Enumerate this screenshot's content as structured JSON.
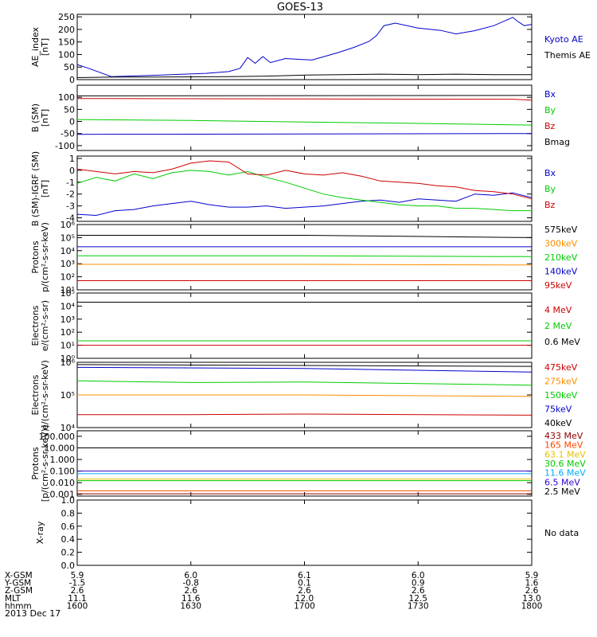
{
  "title": "GOES-13",
  "date_label": "2013 Dec 17",
  "chart_data": [
    {
      "type": "line",
      "ylabel_lines": [
        "AE_index",
        "[nT]"
      ],
      "ylim": [
        0,
        260
      ],
      "yticks": [
        0,
        50,
        100,
        150,
        200,
        250
      ],
      "yticklabels": [
        "0",
        "50",
        "100",
        "150",
        "200",
        "250"
      ],
      "series": [
        {
          "name": "Kyoto AE",
          "color": "#0000cc",
          "x": [
            1600,
            1603,
            1609,
            1620,
            1634,
            1640,
            1643,
            1645,
            1647,
            1649,
            1651,
            1655,
            1702,
            1709,
            1713,
            1717,
            1719,
            1721,
            1724,
            1730,
            1736,
            1740,
            1745,
            1750,
            1755,
            1756,
            1758,
            1800
          ],
          "y": [
            60,
            45,
            12,
            17,
            25,
            32,
            45,
            88,
            65,
            92,
            68,
            84,
            78,
            108,
            128,
            152,
            175,
            215,
            225,
            205,
            196,
            182,
            195,
            215,
            248,
            235,
            215,
            220
          ]
        },
        {
          "name": "Themis AE",
          "color": "#000000",
          "x": [
            1600,
            1610,
            1620,
            1630,
            1640,
            1650,
            1700,
            1710,
            1720,
            1730,
            1740,
            1750,
            1800
          ],
          "y": [
            8,
            10,
            10,
            11,
            12,
            14,
            18,
            20,
            22,
            20,
            22,
            20,
            20
          ]
        }
      ]
    },
    {
      "type": "line",
      "ylabel_lines": [
        "B (SM)",
        "[nT]"
      ],
      "ylim": [
        -120,
        150
      ],
      "yticks": [
        -100,
        -50,
        0,
        50,
        100
      ],
      "yticklabels": [
        "-100",
        "-50",
        "0",
        "50",
        "100"
      ],
      "series": [
        {
          "name": "Bx",
          "color": "#0000cc",
          "x": [
            1600,
            1700,
            1800
          ],
          "y": [
            -53,
            -52,
            -50
          ]
        },
        {
          "name": "By",
          "color": "#00cc00",
          "x": [
            1600,
            1630,
            1700,
            1730,
            1800
          ],
          "y": [
            8,
            4,
            -2,
            -8,
            -15
          ]
        },
        {
          "name": "Bz",
          "color": "#cc0000",
          "x": [
            1600,
            1700,
            1755,
            1800
          ],
          "y": [
            95,
            93,
            92,
            88
          ]
        },
        {
          "name": "Bmag",
          "color": "#000000",
          "x": [
            1600,
            1800
          ],
          "y": [
            106,
            108
          ]
        }
      ]
    },
    {
      "type": "line",
      "ylabel_lines": [
        "B (SM)-IGRF (SM)",
        "[nT]"
      ],
      "ylim": [
        -4.3,
        1.2
      ],
      "yticks": [
        -4,
        -3,
        -2,
        -1,
        0,
        1
      ],
      "yticklabels": [
        "-4",
        "-3",
        "-2",
        "-1",
        "0",
        "1"
      ],
      "series": [
        {
          "name": "Bx",
          "color": "#0000cc",
          "x": [
            1600,
            1605,
            1610,
            1615,
            1620,
            1625,
            1630,
            1635,
            1640,
            1645,
            1650,
            1655,
            1700,
            1705,
            1710,
            1715,
            1720,
            1725,
            1730,
            1735,
            1740,
            1745,
            1750,
            1755,
            1800
          ],
          "y": [
            -3.7,
            -3.8,
            -3.4,
            -3.3,
            -3.0,
            -2.8,
            -2.6,
            -2.9,
            -3.1,
            -3.1,
            -3.0,
            -3.2,
            -3.1,
            -3.0,
            -2.8,
            -2.6,
            -2.5,
            -2.7,
            -2.4,
            -2.5,
            -2.6,
            -2.0,
            -2.1,
            -1.9,
            -2.3
          ]
        },
        {
          "name": "By",
          "color": "#00cc00",
          "x": [
            1600,
            1605,
            1610,
            1615,
            1620,
            1625,
            1630,
            1635,
            1640,
            1645,
            1650,
            1655,
            1700,
            1705,
            1710,
            1715,
            1720,
            1725,
            1730,
            1735,
            1740,
            1745,
            1750,
            1755,
            1800
          ],
          "y": [
            -1.1,
            -0.6,
            -0.9,
            -0.3,
            -0.7,
            -0.2,
            0.0,
            -0.1,
            -0.4,
            -0.1,
            -0.6,
            -1.0,
            -1.5,
            -2.0,
            -2.3,
            -2.5,
            -2.7,
            -2.9,
            -3.0,
            -3.0,
            -3.2,
            -3.2,
            -3.3,
            -3.4,
            -3.4
          ]
        },
        {
          "name": "Bz",
          "color": "#cc0000",
          "x": [
            1600,
            1605,
            1610,
            1615,
            1620,
            1625,
            1630,
            1635,
            1640,
            1645,
            1650,
            1655,
            1700,
            1705,
            1710,
            1715,
            1720,
            1725,
            1730,
            1735,
            1740,
            1745,
            1750,
            1755,
            1800
          ],
          "y": [
            0.1,
            -0.1,
            -0.3,
            -0.1,
            -0.2,
            0.1,
            0.6,
            0.8,
            0.7,
            -0.3,
            -0.4,
            0.0,
            -0.3,
            -0.4,
            -0.2,
            -0.5,
            -0.9,
            -1.0,
            -1.1,
            -1.3,
            -1.4,
            -1.7,
            -1.8,
            -2.0,
            -2.4
          ]
        }
      ]
    },
    {
      "type": "line",
      "ylabel_lines": [
        "Protons",
        "p/(cm²-s-sr-keV)"
      ],
      "yscale": "log",
      "ylim": [
        10,
        1000000
      ],
      "yticks": [
        10,
        100,
        1000,
        10000,
        100000,
        1000000
      ],
      "yticklabels": [
        "10¹",
        "10²",
        "10³",
        "10⁴",
        "10⁵",
        "10⁶"
      ],
      "series": [
        {
          "name": "575keV",
          "color": "#000000",
          "x": [
            1600,
            1700,
            1800
          ],
          "y": [
            150000,
            150000,
            100000
          ]
        },
        {
          "name": "300keV",
          "color": "#ff8c00",
          "x": [
            1600,
            1700,
            1800
          ],
          "y": [
            900,
            900,
            800
          ]
        },
        {
          "name": "210keV",
          "color": "#00cc00",
          "x": [
            1600,
            1700,
            1800
          ],
          "y": [
            4000,
            4000,
            3500
          ]
        },
        {
          "name": "140keV",
          "color": "#0000cc",
          "x": [
            1600,
            1700,
            1800
          ],
          "y": [
            20000,
            20000,
            20000
          ]
        },
        {
          "name": "95keV",
          "color": "#cc0000",
          "x": [
            1600,
            1700,
            1800
          ],
          "y": [
            50,
            50,
            50
          ]
        }
      ]
    },
    {
      "type": "line",
      "ylabel_lines": [
        "Electrons",
        "e/(cm²-s-sr)"
      ],
      "yscale": "log",
      "ylim": [
        1,
        100000
      ],
      "yticks": [
        1,
        10,
        100,
        1000,
        10000,
        100000
      ],
      "yticklabels": [
        "10⁰",
        "10¹",
        "10²",
        "10³",
        "10⁴",
        "10⁵"
      ],
      "series": [
        {
          "name": "4 MeV",
          "color": "#cc0000",
          "x": [
            1600,
            1700,
            1800
          ],
          "y": [
            10,
            10,
            10
          ]
        },
        {
          "name": "2 MeV",
          "color": "#00cc00",
          "x": [
            1600,
            1700,
            1800
          ],
          "y": [
            22,
            22,
            22
          ]
        },
        {
          "name": "0.6 MeV",
          "color": "#000000",
          "x": [
            1600,
            1700,
            1800
          ],
          "y": [
            20000,
            20000,
            20000
          ]
        }
      ]
    },
    {
      "type": "line",
      "ylabel_lines": [
        "Electrons",
        "e/(cm²-s-sr-keV)"
      ],
      "yscale": "log",
      "ylim": [
        10000,
        1000000
      ],
      "yticks": [
        10000,
        100000,
        1000000
      ],
      "yticklabels": [
        "10⁴",
        "10⁵",
        "10⁶"
      ],
      "series": [
        {
          "name": "475keV",
          "color": "#cc0000",
          "x": [
            1600,
            1630,
            1700,
            1800
          ],
          "y": [
            25000,
            25000,
            26000,
            24000
          ]
        },
        {
          "name": "275keV",
          "color": "#ff8c00",
          "x": [
            1600,
            1700,
            1800
          ],
          "y": [
            100000,
            100000,
            90000
          ]
        },
        {
          "name": "150keV",
          "color": "#00cc00",
          "x": [
            1600,
            1630,
            1700,
            1800
          ],
          "y": [
            270000,
            240000,
            250000,
            200000
          ]
        },
        {
          "name": "75keV",
          "color": "#0000cc",
          "x": [
            1600,
            1700,
            1800
          ],
          "y": [
            700000,
            650000,
            500000
          ]
        },
        {
          "name": "40keV",
          "color": "#000000",
          "x": [
            1600,
            1700,
            1800
          ],
          "y": [
            850000,
            800000,
            750000
          ]
        }
      ]
    },
    {
      "type": "line",
      "ylabel_lines": [
        "Protons",
        "[p/(cm²-s-sr-keV)]"
      ],
      "yscale": "log",
      "ylim": [
        0.0007,
        300
      ],
      "yticks": [
        0.001,
        0.01,
        0.1,
        1,
        10,
        100
      ],
      "yticklabels": [
        "0.001",
        "0.010",
        "0.100",
        "1.000",
        "10.000",
        "100.000"
      ],
      "series": [
        {
          "name": "433 MeV",
          "color": "#8b0000",
          "x": [
            1600,
            1800
          ],
          "y": [
            0.0011,
            0.0011
          ]
        },
        {
          "name": "165 MeV",
          "color": "#ff4500",
          "x": [
            1600,
            1800
          ],
          "y": [
            0.002,
            0.002
          ]
        },
        {
          "name": "63.1 MeV",
          "color": "#e6c200",
          "x": [
            1600,
            1800
          ],
          "y": [
            0.02,
            0.02
          ]
        },
        {
          "name": "30.6 MeV",
          "color": "#00cc00",
          "x": [
            1600,
            1800
          ],
          "y": [
            0.015,
            0.015
          ]
        },
        {
          "name": "11.6 MeV",
          "color": "#00aaff",
          "x": [
            1600,
            1800
          ],
          "y": [
            0.06,
            0.06
          ]
        },
        {
          "name": "6.5 MeV",
          "color": "#3300cc",
          "x": [
            1600,
            1800
          ],
          "y": [
            0.1,
            0.1
          ]
        },
        {
          "name": "2.5 MeV",
          "color": "#000000",
          "x": [
            1600,
            1800
          ],
          "y": [
            10,
            10
          ]
        }
      ]
    },
    {
      "type": "line",
      "ylabel_lines": [
        "X-ray"
      ],
      "ylim": [
        0,
        1
      ],
      "yticks": [
        0,
        0.2,
        0.4,
        0.6,
        0.8,
        1.0
      ],
      "yticklabels": [
        "0.0",
        "0.2",
        "0.4",
        "0.6",
        "0.8",
        "1.0"
      ],
      "series": [],
      "legend_text": "No data"
    }
  ],
  "x_axis": {
    "ticks": [
      1600,
      1630,
      1700,
      1730,
      1800
    ],
    "row_labels": [
      "X-GSM",
      "Y-GSM",
      "Z-GSM",
      "MLT",
      "hhmm"
    ],
    "rows": [
      [
        "5.9",
        "6.0",
        "6.1",
        "6.0",
        "5.9"
      ],
      [
        "-1.5",
        "-0.8",
        "0.1",
        "0.9",
        "1.6"
      ],
      [
        "2.6",
        "2.6",
        "2.6",
        "2.6",
        "2.6"
      ],
      [
        "11.1",
        "11.6",
        "12.0",
        "12.5",
        "13.0"
      ],
      [
        "1600",
        "1630",
        "1700",
        "1730",
        "1800"
      ]
    ]
  }
}
